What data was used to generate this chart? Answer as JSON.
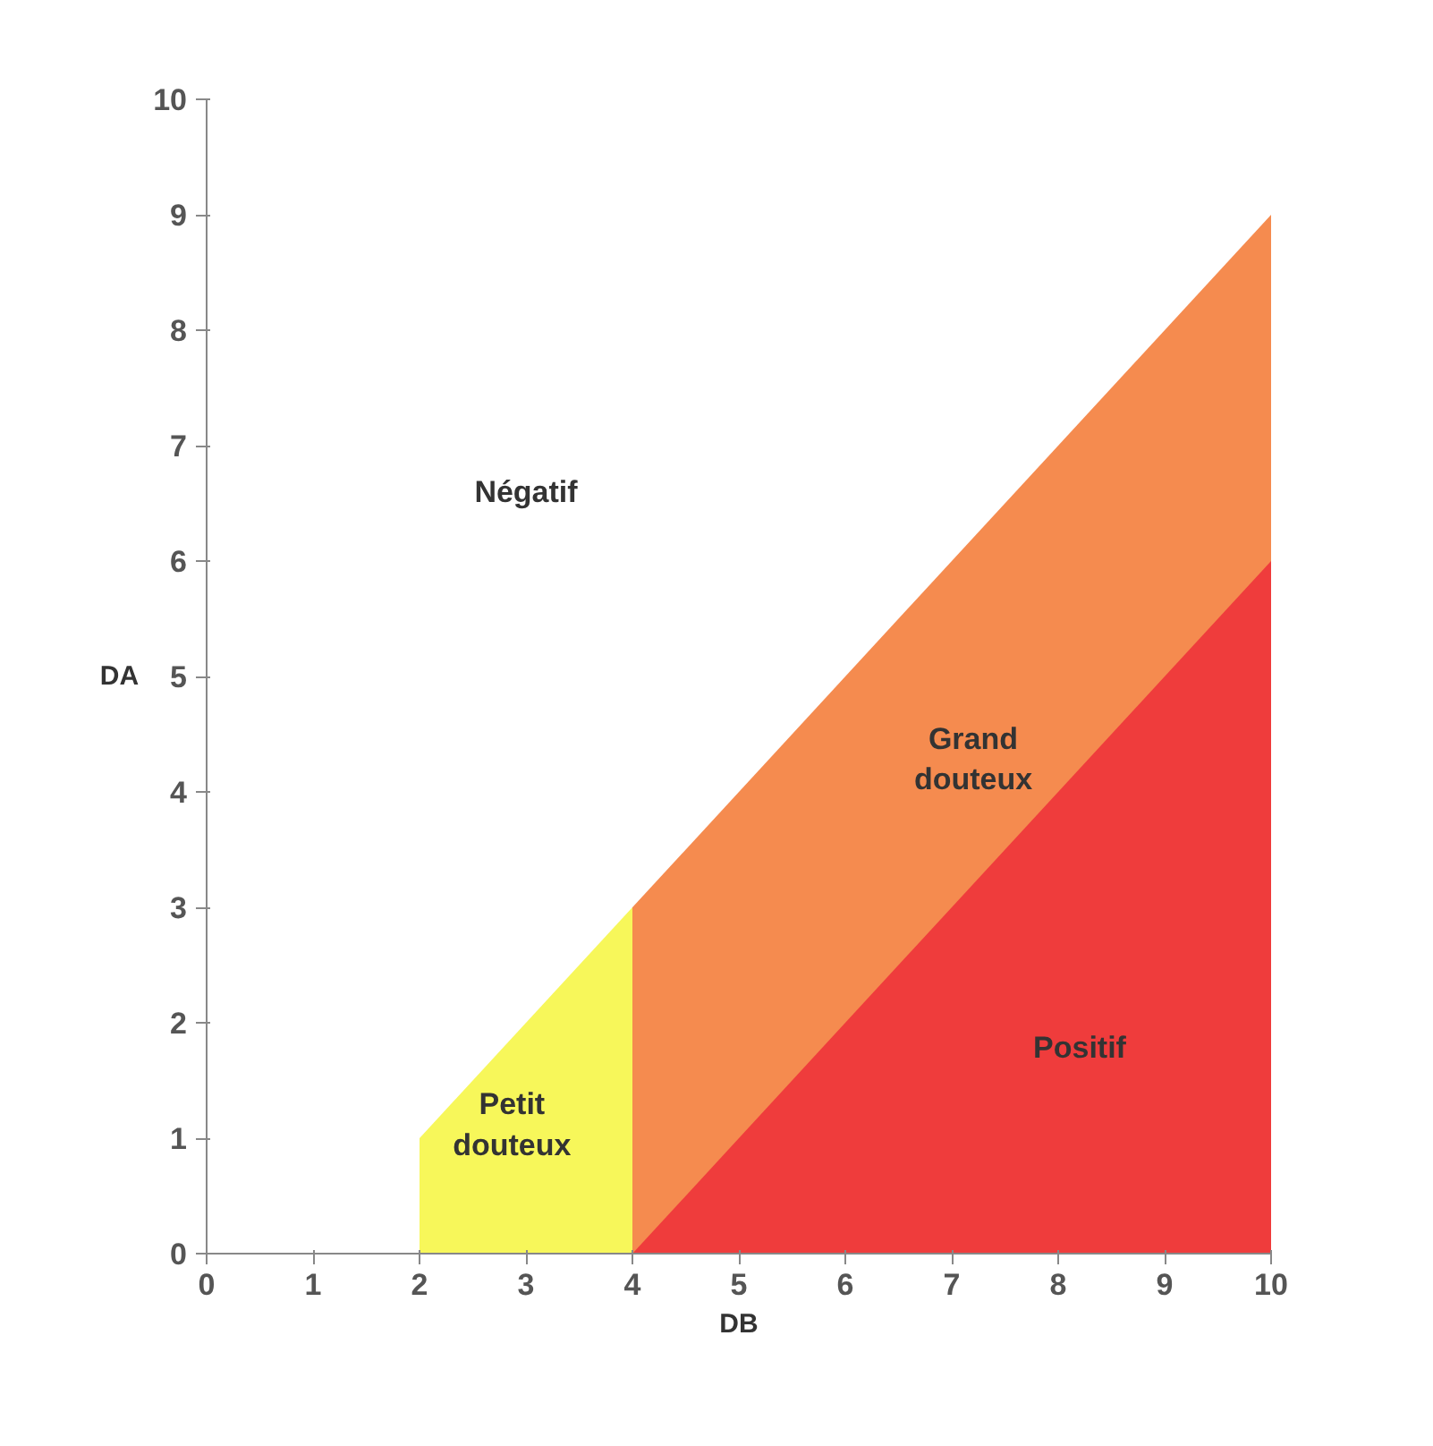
{
  "chart_data": {
    "type": "area",
    "xlabel": "DB",
    "ylabel": "DA",
    "xlim": [
      0,
      10
    ],
    "ylim": [
      0,
      10
    ],
    "xticks": [
      0,
      1,
      2,
      3,
      4,
      5,
      6,
      7,
      8,
      9,
      10
    ],
    "yticks": [
      0,
      1,
      2,
      3,
      4,
      5,
      6,
      7,
      8,
      9,
      10
    ],
    "grid": false,
    "series": [
      {
        "name": "Petit\ndouteux",
        "color": "#f7f75a",
        "x": [
          2,
          4
        ],
        "values": [
          1,
          3
        ]
      },
      {
        "name": "Grand\ndouteux",
        "color": "#f58b4f",
        "x": [
          4,
          10
        ],
        "values": [
          3,
          9
        ]
      },
      {
        "name": "Positif",
        "color": "#ef3c3c",
        "x": [
          4,
          10
        ],
        "values": [
          0,
          6
        ]
      }
    ],
    "annotations": [
      "Négatif"
    ]
  }
}
